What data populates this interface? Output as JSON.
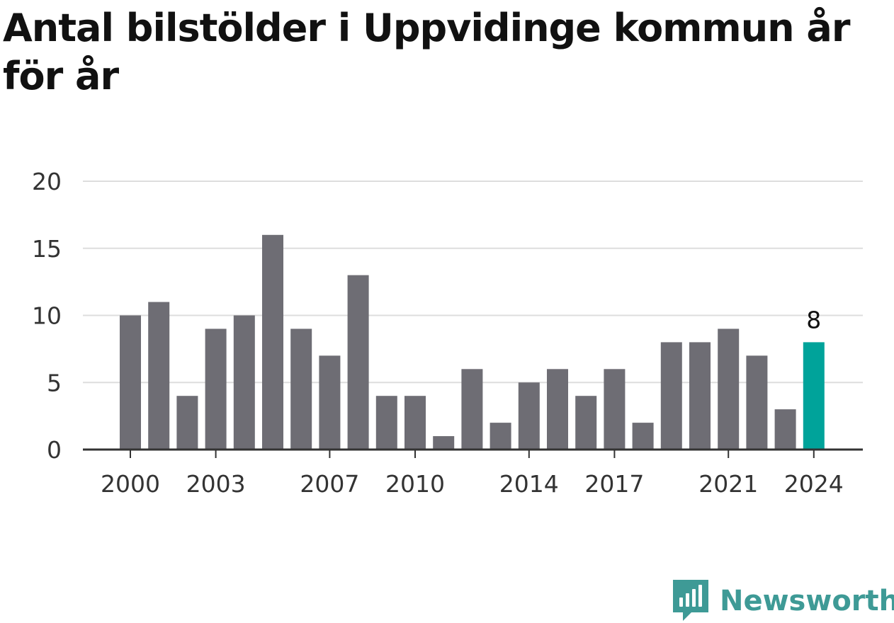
{
  "chart_data": {
    "type": "bar",
    "title": "Antal bilstölder i Uppvidinge kommun år för år",
    "x": [
      2000,
      2001,
      2002,
      2003,
      2004,
      2005,
      2006,
      2007,
      2008,
      2009,
      2010,
      2011,
      2012,
      2013,
      2014,
      2015,
      2016,
      2017,
      2018,
      2019,
      2020,
      2021,
      2022,
      2023,
      2024
    ],
    "values": [
      10,
      11,
      4,
      9,
      10,
      16,
      9,
      7,
      13,
      4,
      4,
      1,
      6,
      2,
      5,
      6,
      4,
      6,
      2,
      8,
      8,
      9,
      7,
      3,
      8
    ],
    "xticks": [
      2000,
      2003,
      2007,
      2010,
      2014,
      2017,
      2021,
      2024
    ],
    "yticks": [
      0,
      5,
      10,
      15,
      20
    ],
    "ylim": [
      0,
      20
    ],
    "grid": "horizontal",
    "highlight_index": 24,
    "highlight_label": "8",
    "colors": {
      "bar": "#6e6d74",
      "highlight": "#00a39a",
      "grid": "#dddddd",
      "axis": "#333333"
    },
    "xlabel": "",
    "ylabel": ""
  },
  "brand": {
    "name": "Newsworthy",
    "color": "#3e9a96",
    "icon": "newsworthy-logo-icon"
  }
}
